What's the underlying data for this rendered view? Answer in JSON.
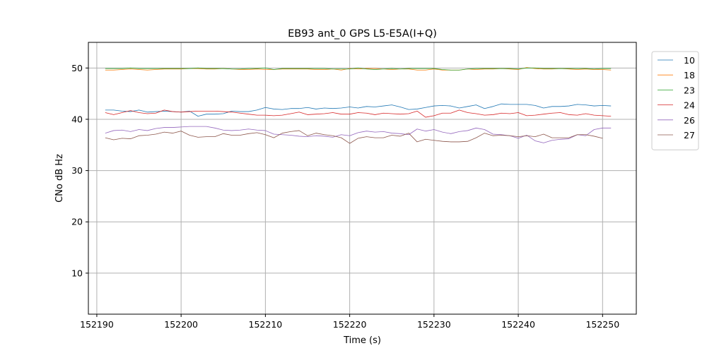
{
  "chart_data": {
    "type": "line",
    "title": "EB93 ant_0 GPS L5-E5A(I+Q)",
    "xlabel": "Time (s)",
    "ylabel": "CNo dB Hz",
    "xlim": [
      152189.0,
      152254.0
    ],
    "ylim": [
      2,
      55
    ],
    "xticks": [
      152190,
      152200,
      152210,
      152220,
      152230,
      152240,
      152250
    ],
    "yticks": [
      10,
      20,
      30,
      40,
      50
    ],
    "grid": true,
    "legend_position": "outside-right",
    "series": [
      {
        "name": "10",
        "color": "#1f77b4",
        "x": [
          152191,
          152192,
          152193,
          152194,
          152195,
          152196,
          152197,
          152198,
          152199,
          152200,
          152201,
          152202,
          152203,
          152204,
          152205,
          152206,
          152207,
          152208,
          152209,
          152210,
          152211,
          152212,
          152213,
          152214,
          152215,
          152216,
          152217,
          152218,
          152219,
          152220,
          152221,
          152222,
          152223,
          152224,
          152225,
          152226,
          152227,
          152228,
          152229,
          152230,
          152231,
          152232,
          152233,
          152234,
          152235,
          152236,
          152237,
          152238,
          152239,
          152240,
          152241,
          152242,
          152243,
          152244,
          152245,
          152246,
          152247,
          152248,
          152249,
          152250,
          152251
        ],
        "y": [
          41.8,
          41.8,
          41.6,
          41.5,
          41.8,
          41.4,
          41.5,
          41.6,
          41.5,
          41.4,
          41.6,
          40.6,
          41.0,
          41.0,
          41.1,
          41.6,
          41.5,
          41.5,
          41.8,
          42.3,
          42.0,
          41.9,
          42.1,
          42.1,
          42.3,
          42.0,
          42.2,
          42.1,
          42.2,
          42.4,
          42.2,
          42.5,
          42.4,
          42.6,
          42.8,
          42.4,
          41.9,
          42.0,
          42.3,
          42.6,
          42.7,
          42.6,
          42.2,
          42.5,
          42.8,
          42.1,
          42.5,
          43.0,
          42.9,
          42.9,
          42.9,
          42.7,
          42.2,
          42.5,
          42.5,
          42.6,
          42.9,
          42.8,
          42.6,
          42.7,
          42.6
        ]
      },
      {
        "name": "18",
        "color": "#ff7f0e",
        "x": [
          152191,
          152192,
          152193,
          152194,
          152195,
          152196,
          152197,
          152198,
          152199,
          152200,
          152201,
          152202,
          152203,
          152204,
          152205,
          152206,
          152207,
          152208,
          152209,
          152210,
          152211,
          152212,
          152213,
          152214,
          152215,
          152216,
          152217,
          152218,
          152219,
          152220,
          152221,
          152222,
          152223,
          152224,
          152225,
          152226,
          152227,
          152228,
          152229,
          152230,
          152231,
          152232,
          152233,
          152234,
          152235,
          152236,
          152237,
          152238,
          152239,
          152240,
          152241,
          152242,
          152243,
          152244,
          152245,
          152246,
          152247,
          152248,
          152249,
          152250,
          152251
        ],
        "y": [
          49.6,
          49.6,
          49.7,
          49.8,
          49.7,
          49.6,
          49.7,
          49.8,
          49.8,
          49.8,
          49.9,
          49.9,
          49.8,
          49.8,
          49.9,
          49.8,
          49.7,
          49.7,
          49.8,
          49.7,
          49.7,
          49.8,
          49.8,
          49.8,
          49.8,
          49.7,
          49.7,
          49.8,
          49.6,
          49.9,
          49.8,
          49.9,
          49.9,
          49.8,
          49.7,
          49.8,
          49.8,
          49.6,
          49.6,
          49.8,
          49.6,
          49.6,
          49.6,
          49.8,
          49.7,
          49.8,
          49.8,
          49.9,
          49.8,
          49.7,
          50.1,
          49.9,
          49.8,
          49.8,
          49.9,
          49.8,
          49.7,
          49.8,
          49.7,
          49.7,
          49.6
        ]
      },
      {
        "name": "23",
        "color": "#2ca02c",
        "x": [
          152191,
          152192,
          152193,
          152194,
          152195,
          152196,
          152197,
          152198,
          152199,
          152200,
          152201,
          152202,
          152203,
          152204,
          152205,
          152206,
          152207,
          152208,
          152209,
          152210,
          152211,
          152212,
          152213,
          152214,
          152215,
          152216,
          152217,
          152218,
          152219,
          152220,
          152221,
          152222,
          152223,
          152224,
          152225,
          152226,
          152227,
          152228,
          152229,
          152230,
          152231,
          152232,
          152233,
          152234,
          152235,
          152236,
          152237,
          152238,
          152239,
          152240,
          152241,
          152242,
          152243,
          152244,
          152245,
          152246,
          152247,
          152248,
          152249,
          152250,
          152251
        ],
        "y": [
          49.9,
          49.9,
          49.9,
          50.0,
          49.9,
          49.9,
          49.9,
          49.9,
          49.9,
          49.9,
          49.9,
          50.0,
          49.9,
          49.9,
          49.9,
          49.8,
          49.8,
          49.9,
          49.9,
          50.0,
          49.7,
          49.9,
          49.9,
          49.9,
          49.9,
          49.9,
          49.9,
          49.8,
          49.8,
          49.8,
          50.0,
          49.8,
          49.7,
          49.8,
          49.9,
          49.8,
          49.9,
          49.9,
          49.9,
          49.9,
          49.7,
          49.6,
          49.6,
          49.8,
          49.9,
          49.9,
          49.9,
          49.9,
          49.9,
          49.8,
          50.0,
          50.0,
          49.9,
          49.9,
          49.9,
          49.9,
          49.9,
          49.9,
          49.8,
          49.9,
          49.9
        ]
      },
      {
        "name": "24",
        "color": "#d62728",
        "x": [
          152191,
          152192,
          152193,
          152194,
          152195,
          152196,
          152197,
          152198,
          152199,
          152200,
          152201,
          152202,
          152203,
          152204,
          152205,
          152206,
          152207,
          152208,
          152209,
          152210,
          152211,
          152212,
          152213,
          152214,
          152215,
          152216,
          152217,
          152218,
          152219,
          152220,
          152221,
          152222,
          152223,
          152224,
          152225,
          152226,
          152227,
          152228,
          152229,
          152230,
          152231,
          152232,
          152233,
          152234,
          152235,
          152236,
          152237,
          152238,
          152239,
          152240,
          152241,
          152242,
          152243,
          152244,
          152245,
          152246,
          152247,
          152248,
          152249,
          152250,
          152251
        ],
        "y": [
          41.3,
          40.9,
          41.3,
          41.7,
          41.3,
          41.1,
          41.2,
          41.8,
          41.5,
          41.4,
          41.5,
          41.6,
          41.6,
          41.6,
          41.5,
          41.4,
          41.2,
          41.0,
          40.8,
          40.8,
          40.7,
          40.8,
          41.1,
          41.4,
          40.9,
          41.0,
          41.1,
          41.3,
          41.0,
          41.0,
          41.3,
          41.2,
          40.9,
          41.2,
          41.1,
          41.0,
          41.1,
          41.6,
          40.4,
          40.7,
          41.2,
          41.2,
          41.8,
          41.3,
          41.1,
          40.8,
          40.9,
          41.2,
          41.1,
          41.3,
          40.7,
          40.8,
          41.0,
          41.2,
          41.3,
          40.9,
          40.8,
          41.1,
          40.8,
          40.7,
          40.6
        ]
      },
      {
        "name": "26",
        "color": "#9467bd",
        "x": [
          152191,
          152192,
          152193,
          152194,
          152195,
          152196,
          152197,
          152198,
          152199,
          152200,
          152201,
          152202,
          152203,
          152204,
          152205,
          152206,
          152207,
          152208,
          152209,
          152210,
          152211,
          152212,
          152213,
          152214,
          152215,
          152216,
          152217,
          152218,
          152219,
          152220,
          152221,
          152222,
          152223,
          152224,
          152225,
          152226,
          152227,
          152228,
          152229,
          152230,
          152231,
          152232,
          152233,
          152234,
          152235,
          152236,
          152237,
          152238,
          152239,
          152240,
          152241,
          152242,
          152243,
          152244,
          152245,
          152246,
          152247,
          152248,
          152249,
          152250,
          152251
        ],
        "y": [
          37.3,
          37.8,
          37.9,
          37.6,
          38.0,
          37.8,
          38.2,
          38.4,
          38.4,
          38.5,
          38.6,
          38.6,
          38.6,
          38.3,
          37.9,
          37.8,
          37.9,
          38.1,
          37.9,
          37.8,
          37.1,
          37.0,
          36.9,
          36.7,
          36.6,
          36.8,
          36.7,
          36.5,
          37.0,
          36.8,
          37.4,
          37.7,
          37.5,
          37.6,
          37.3,
          37.2,
          37.0,
          38.1,
          37.7,
          38.0,
          37.5,
          37.2,
          37.6,
          37.8,
          38.3,
          38.0,
          37.1,
          37.0,
          36.8,
          36.3,
          36.9,
          35.8,
          35.4,
          35.9,
          36.1,
          36.2,
          37.0,
          36.8,
          38.0,
          38.3,
          38.3
        ]
      },
      {
        "name": "27",
        "color": "#8c564b",
        "x": [
          152191,
          152192,
          152193,
          152194,
          152195,
          152196,
          152197,
          152198,
          152199,
          152200,
          152201,
          152202,
          152203,
          152204,
          152205,
          152206,
          152207,
          152208,
          152209,
          152210,
          152211,
          152212,
          152213,
          152214,
          152215,
          152216,
          152217,
          152218,
          152219,
          152220,
          152221,
          152222,
          152223,
          152224,
          152225,
          152226,
          152227,
          152228,
          152229,
          152230,
          152231,
          152232,
          152233,
          152234,
          152235,
          152236,
          152237,
          152238,
          152239,
          152240,
          152241,
          152242,
          152243,
          152244,
          152245,
          152246,
          152247,
          152248,
          152249,
          152250
        ],
        "y": [
          36.4,
          36.0,
          36.3,
          36.2,
          36.8,
          36.9,
          37.1,
          37.5,
          37.3,
          37.7,
          36.9,
          36.5,
          36.6,
          36.6,
          37.2,
          36.9,
          36.9,
          37.2,
          37.4,
          37.0,
          36.4,
          37.3,
          37.6,
          37.8,
          36.8,
          37.3,
          37.0,
          36.8,
          36.4,
          35.3,
          36.3,
          36.6,
          36.4,
          36.4,
          36.9,
          36.7,
          37.3,
          35.6,
          36.1,
          35.9,
          35.7,
          35.6,
          35.6,
          35.7,
          36.4,
          37.3,
          36.8,
          36.9,
          36.8,
          36.6,
          36.8,
          36.6,
          37.1,
          36.4,
          36.4,
          36.4,
          37.0,
          37.0,
          36.7,
          36.3
        ]
      }
    ]
  }
}
